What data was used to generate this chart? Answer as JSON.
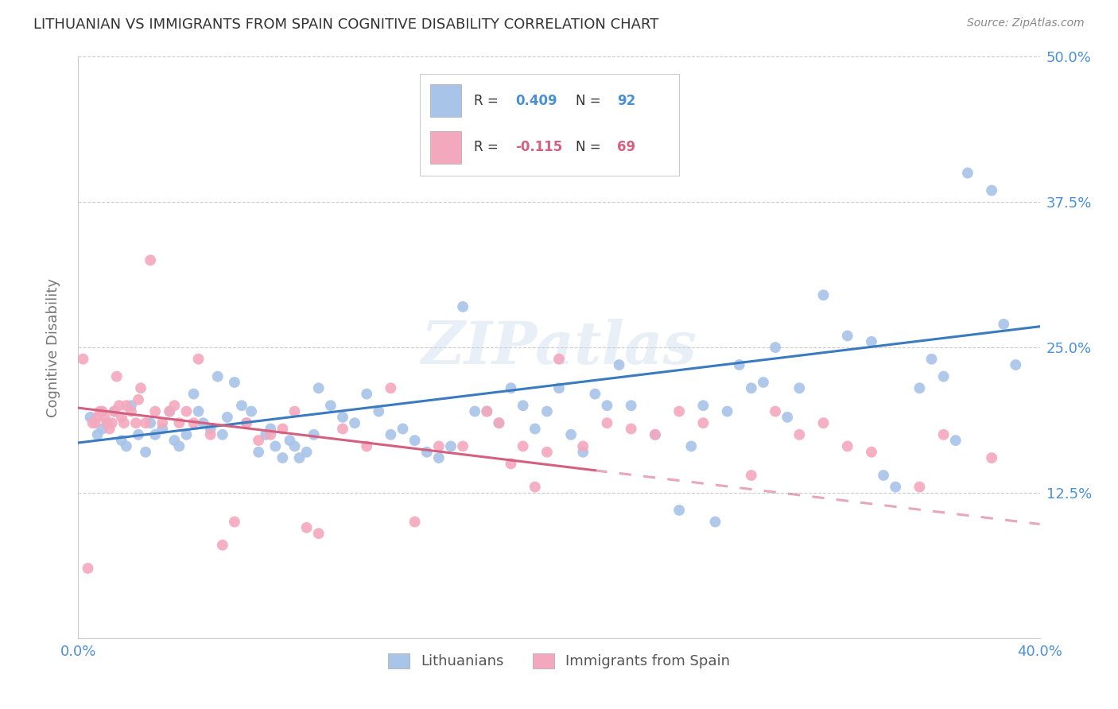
{
  "title": "LITHUANIAN VS IMMIGRANTS FROM SPAIN COGNITIVE DISABILITY CORRELATION CHART",
  "source": "Source: ZipAtlas.com",
  "ylabel": "Cognitive Disability",
  "xlim": [
    0.0,
    0.4
  ],
  "ylim": [
    0.0,
    0.5
  ],
  "xticks": [
    0.0,
    0.1,
    0.2,
    0.3,
    0.4
  ],
  "xticklabels": [
    "0.0%",
    "",
    "",
    "",
    "40.0%"
  ],
  "yticks": [
    0.0,
    0.125,
    0.25,
    0.375,
    0.5
  ],
  "yticklabels": [
    "",
    "12.5%",
    "25.0%",
    "37.5%",
    "50.0%"
  ],
  "watermark": "ZIPatlas",
  "blue_scatter_color": "#a8c4e8",
  "pink_scatter_color": "#f4a8be",
  "blue_line_color": "#3a7bbf",
  "pink_line_color": "#d46080",
  "blue_points": [
    [
      0.005,
      0.19
    ],
    [
      0.008,
      0.175
    ],
    [
      0.01,
      0.18
    ],
    [
      0.012,
      0.185
    ],
    [
      0.015,
      0.195
    ],
    [
      0.018,
      0.17
    ],
    [
      0.02,
      0.165
    ],
    [
      0.022,
      0.2
    ],
    [
      0.025,
      0.175
    ],
    [
      0.028,
      0.16
    ],
    [
      0.03,
      0.185
    ],
    [
      0.032,
      0.175
    ],
    [
      0.035,
      0.18
    ],
    [
      0.038,
      0.195
    ],
    [
      0.04,
      0.17
    ],
    [
      0.042,
      0.165
    ],
    [
      0.045,
      0.175
    ],
    [
      0.048,
      0.21
    ],
    [
      0.05,
      0.195
    ],
    [
      0.052,
      0.185
    ],
    [
      0.055,
      0.18
    ],
    [
      0.058,
      0.225
    ],
    [
      0.06,
      0.175
    ],
    [
      0.062,
      0.19
    ],
    [
      0.065,
      0.22
    ],
    [
      0.068,
      0.2
    ],
    [
      0.07,
      0.185
    ],
    [
      0.072,
      0.195
    ],
    [
      0.075,
      0.16
    ],
    [
      0.078,
      0.175
    ],
    [
      0.08,
      0.18
    ],
    [
      0.082,
      0.165
    ],
    [
      0.085,
      0.155
    ],
    [
      0.088,
      0.17
    ],
    [
      0.09,
      0.165
    ],
    [
      0.092,
      0.155
    ],
    [
      0.095,
      0.16
    ],
    [
      0.098,
      0.175
    ],
    [
      0.1,
      0.215
    ],
    [
      0.105,
      0.2
    ],
    [
      0.11,
      0.19
    ],
    [
      0.115,
      0.185
    ],
    [
      0.12,
      0.21
    ],
    [
      0.125,
      0.195
    ],
    [
      0.13,
      0.175
    ],
    [
      0.135,
      0.18
    ],
    [
      0.14,
      0.17
    ],
    [
      0.145,
      0.16
    ],
    [
      0.15,
      0.155
    ],
    [
      0.155,
      0.165
    ],
    [
      0.16,
      0.285
    ],
    [
      0.165,
      0.195
    ],
    [
      0.17,
      0.195
    ],
    [
      0.175,
      0.185
    ],
    [
      0.18,
      0.215
    ],
    [
      0.185,
      0.2
    ],
    [
      0.19,
      0.18
    ],
    [
      0.195,
      0.195
    ],
    [
      0.2,
      0.215
    ],
    [
      0.205,
      0.175
    ],
    [
      0.21,
      0.16
    ],
    [
      0.215,
      0.21
    ],
    [
      0.22,
      0.2
    ],
    [
      0.225,
      0.235
    ],
    [
      0.23,
      0.2
    ],
    [
      0.24,
      0.175
    ],
    [
      0.25,
      0.11
    ],
    [
      0.255,
      0.165
    ],
    [
      0.26,
      0.2
    ],
    [
      0.265,
      0.1
    ],
    [
      0.27,
      0.195
    ],
    [
      0.275,
      0.235
    ],
    [
      0.28,
      0.215
    ],
    [
      0.285,
      0.22
    ],
    [
      0.29,
      0.25
    ],
    [
      0.295,
      0.19
    ],
    [
      0.3,
      0.215
    ],
    [
      0.31,
      0.295
    ],
    [
      0.32,
      0.26
    ],
    [
      0.33,
      0.255
    ],
    [
      0.335,
      0.14
    ],
    [
      0.34,
      0.13
    ],
    [
      0.35,
      0.215
    ],
    [
      0.355,
      0.24
    ],
    [
      0.36,
      0.225
    ],
    [
      0.365,
      0.17
    ],
    [
      0.37,
      0.4
    ],
    [
      0.38,
      0.385
    ],
    [
      0.385,
      0.27
    ],
    [
      0.39,
      0.235
    ]
  ],
  "pink_points": [
    [
      0.002,
      0.24
    ],
    [
      0.004,
      0.06
    ],
    [
      0.006,
      0.185
    ],
    [
      0.007,
      0.185
    ],
    [
      0.008,
      0.19
    ],
    [
      0.009,
      0.195
    ],
    [
      0.01,
      0.195
    ],
    [
      0.011,
      0.19
    ],
    [
      0.012,
      0.185
    ],
    [
      0.013,
      0.18
    ],
    [
      0.014,
      0.185
    ],
    [
      0.015,
      0.195
    ],
    [
      0.016,
      0.225
    ],
    [
      0.017,
      0.2
    ],
    [
      0.018,
      0.19
    ],
    [
      0.019,
      0.185
    ],
    [
      0.02,
      0.2
    ],
    [
      0.022,
      0.195
    ],
    [
      0.024,
      0.185
    ],
    [
      0.025,
      0.205
    ],
    [
      0.026,
      0.215
    ],
    [
      0.028,
      0.185
    ],
    [
      0.03,
      0.325
    ],
    [
      0.032,
      0.195
    ],
    [
      0.035,
      0.185
    ],
    [
      0.038,
      0.195
    ],
    [
      0.04,
      0.2
    ],
    [
      0.042,
      0.185
    ],
    [
      0.045,
      0.195
    ],
    [
      0.048,
      0.185
    ],
    [
      0.05,
      0.24
    ],
    [
      0.055,
      0.175
    ],
    [
      0.06,
      0.08
    ],
    [
      0.065,
      0.1
    ],
    [
      0.07,
      0.185
    ],
    [
      0.075,
      0.17
    ],
    [
      0.08,
      0.175
    ],
    [
      0.085,
      0.18
    ],
    [
      0.09,
      0.195
    ],
    [
      0.095,
      0.095
    ],
    [
      0.1,
      0.09
    ],
    [
      0.11,
      0.18
    ],
    [
      0.12,
      0.165
    ],
    [
      0.13,
      0.215
    ],
    [
      0.14,
      0.1
    ],
    [
      0.15,
      0.165
    ],
    [
      0.16,
      0.165
    ],
    [
      0.17,
      0.195
    ],
    [
      0.175,
      0.185
    ],
    [
      0.18,
      0.15
    ],
    [
      0.185,
      0.165
    ],
    [
      0.19,
      0.13
    ],
    [
      0.195,
      0.16
    ],
    [
      0.2,
      0.24
    ],
    [
      0.21,
      0.165
    ],
    [
      0.22,
      0.185
    ],
    [
      0.23,
      0.18
    ],
    [
      0.24,
      0.175
    ],
    [
      0.25,
      0.195
    ],
    [
      0.26,
      0.185
    ],
    [
      0.28,
      0.14
    ],
    [
      0.29,
      0.195
    ],
    [
      0.3,
      0.175
    ],
    [
      0.31,
      0.185
    ],
    [
      0.32,
      0.165
    ],
    [
      0.33,
      0.16
    ],
    [
      0.35,
      0.13
    ],
    [
      0.36,
      0.175
    ],
    [
      0.38,
      0.155
    ]
  ],
  "blue_line_y_start": 0.168,
  "blue_line_y_end": 0.268,
  "pink_line_y_start": 0.198,
  "pink_line_y_end": 0.098,
  "pink_line_solid_end": 0.215,
  "background_color": "#ffffff",
  "grid_color": "#cccccc",
  "title_color": "#333333",
  "tick_label_color": "#4a90d9",
  "ylabel_color": "#777777",
  "legend_text_color": "#333333",
  "legend_value_color": "#4a90d9"
}
